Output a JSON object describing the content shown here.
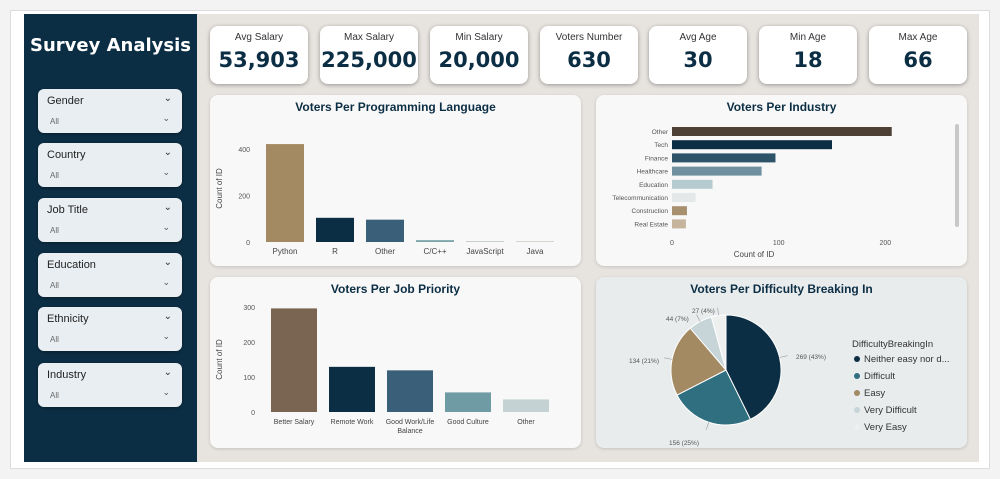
{
  "sidebar": {
    "title": "Survey Analysis",
    "slicers": [
      {
        "label": "Gender",
        "value": "All"
      },
      {
        "label": "Country",
        "value": "All"
      },
      {
        "label": "Job Title",
        "value": "All"
      },
      {
        "label": "Education",
        "value": "All"
      },
      {
        "label": "Ethnicity",
        "value": "All"
      },
      {
        "label": "Industry",
        "value": "All"
      }
    ]
  },
  "kpis": [
    {
      "label": "Avg Salary",
      "value": "53,903"
    },
    {
      "label": "Max Salary",
      "value": "225,000"
    },
    {
      "label": "Min Salary",
      "value": "20,000"
    },
    {
      "label": "Voters Number",
      "value": "630"
    },
    {
      "label": "Avg Age",
      "value": "30"
    },
    {
      "label": "Min Age",
      "value": "18"
    },
    {
      "label": "Max Age",
      "value": "66"
    }
  ],
  "colors": {
    "navy": "#0c2e44",
    "sidebar_bg": "#0c2e44",
    "main_bg": "#e7e3df"
  },
  "icons": {
    "slicer_chevron": "chevron-down-icon"
  },
  "chart_data": [
    {
      "id": "lang",
      "type": "bar",
      "title": "Voters Per Programming Language",
      "xlabel": "",
      "ylabel": "Count of ID",
      "ylim": [
        0,
        460
      ],
      "yticks": [
        0,
        200,
        400
      ],
      "categories": [
        "Python",
        "R",
        "Other",
        "C/C++",
        "JavaScript",
        "Java"
      ],
      "values": [
        421,
        104,
        96,
        8,
        3,
        4
      ],
      "colors": [
        "#a38a63",
        "#0c2e44",
        "#3a5f78",
        "#7ca6a9",
        "#c8cdcd",
        "#d8d4cf"
      ]
    },
    {
      "id": "industry",
      "type": "bar",
      "orientation": "horizontal",
      "title": "Voters Per Industry",
      "xlabel": "Count of ID",
      "ylabel": "",
      "xlim": [
        0,
        210
      ],
      "xticks": [
        0,
        100,
        200
      ],
      "categories": [
        "Other",
        "Tech",
        "Finance",
        "Healthcare",
        "Education",
        "Telecommunication",
        "Construction",
        "Real Estate"
      ],
      "values": [
        206,
        150,
        97,
        84,
        38,
        22,
        14,
        13
      ],
      "colors": [
        "#4e4034",
        "#0c2e44",
        "#2f5368",
        "#7090a0",
        "#b5cbcf",
        "#e4e8e8",
        "#a88f6e",
        "#c7b49c"
      ]
    },
    {
      "id": "priority",
      "type": "bar",
      "title": "Voters Per Job Priority",
      "xlabel": "",
      "ylabel": "Count of ID",
      "ylim": [
        0,
        300
      ],
      "yticks": [
        0,
        100,
        200,
        300
      ],
      "categories": [
        "Better Salary",
        "Remote Work",
        "Good Work/Life Balance",
        "Good Culture",
        "Other"
      ],
      "values": [
        296,
        129,
        119,
        56,
        36
      ],
      "colors": [
        "#7a6552",
        "#0c2e44",
        "#3a5f78",
        "#6f9ba4",
        "#c5d2d4"
      ]
    },
    {
      "id": "difficulty",
      "type": "pie",
      "title": "Voters Per Difficulty Breaking In",
      "legend_title": "DifficultyBreakingIn",
      "legend": "right",
      "slices": [
        {
          "name": "Neither easy nor d...",
          "value": 269,
          "label": "269 (43%)",
          "color": "#0c2e44"
        },
        {
          "name": "Difficult",
          "value": 156,
          "label": "156 (25%)",
          "color": "#2f6f80"
        },
        {
          "name": "Easy",
          "value": 134,
          "label": "134 (21%)",
          "color": "#a38a63"
        },
        {
          "name": "Very Difficult",
          "value": 44,
          "label": "44 (7%)",
          "color": "#c7d5d8"
        },
        {
          "name": "Very Easy",
          "value": 27,
          "label": "27 (4%)",
          "color": "#eef0f0"
        }
      ]
    }
  ]
}
